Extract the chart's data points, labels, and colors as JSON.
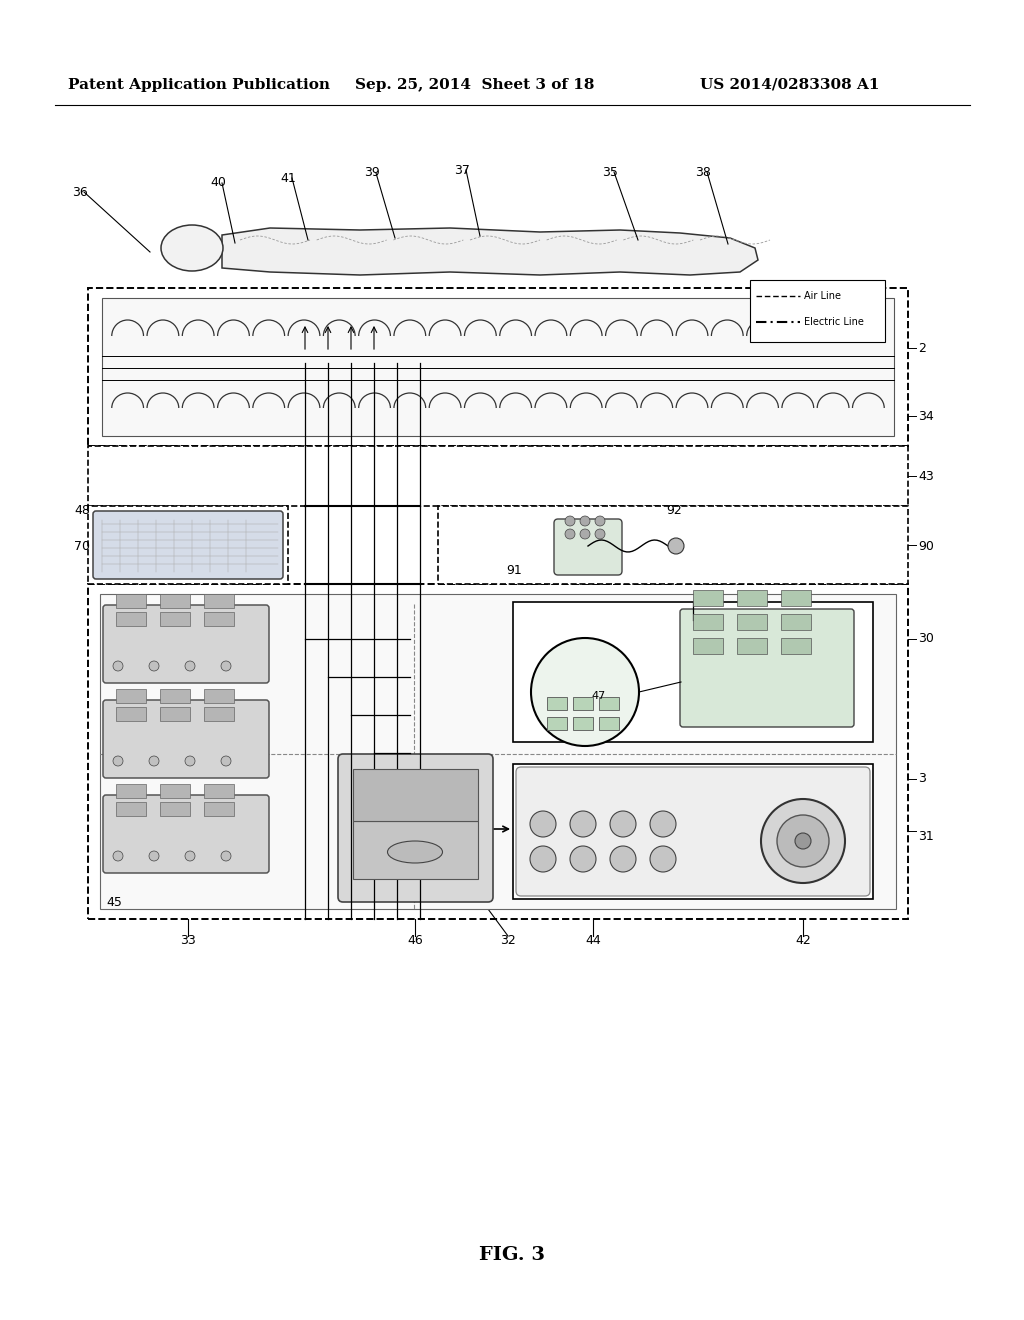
{
  "header_left": "Patent Application Publication",
  "header_center": "Sep. 25, 2014  Sheet 3 of 18",
  "header_right": "US 2014/0283308 A1",
  "title": "FIG. 3",
  "bg_color": "#ffffff",
  "label_fontsize": 9,
  "header_fontsize": 11
}
